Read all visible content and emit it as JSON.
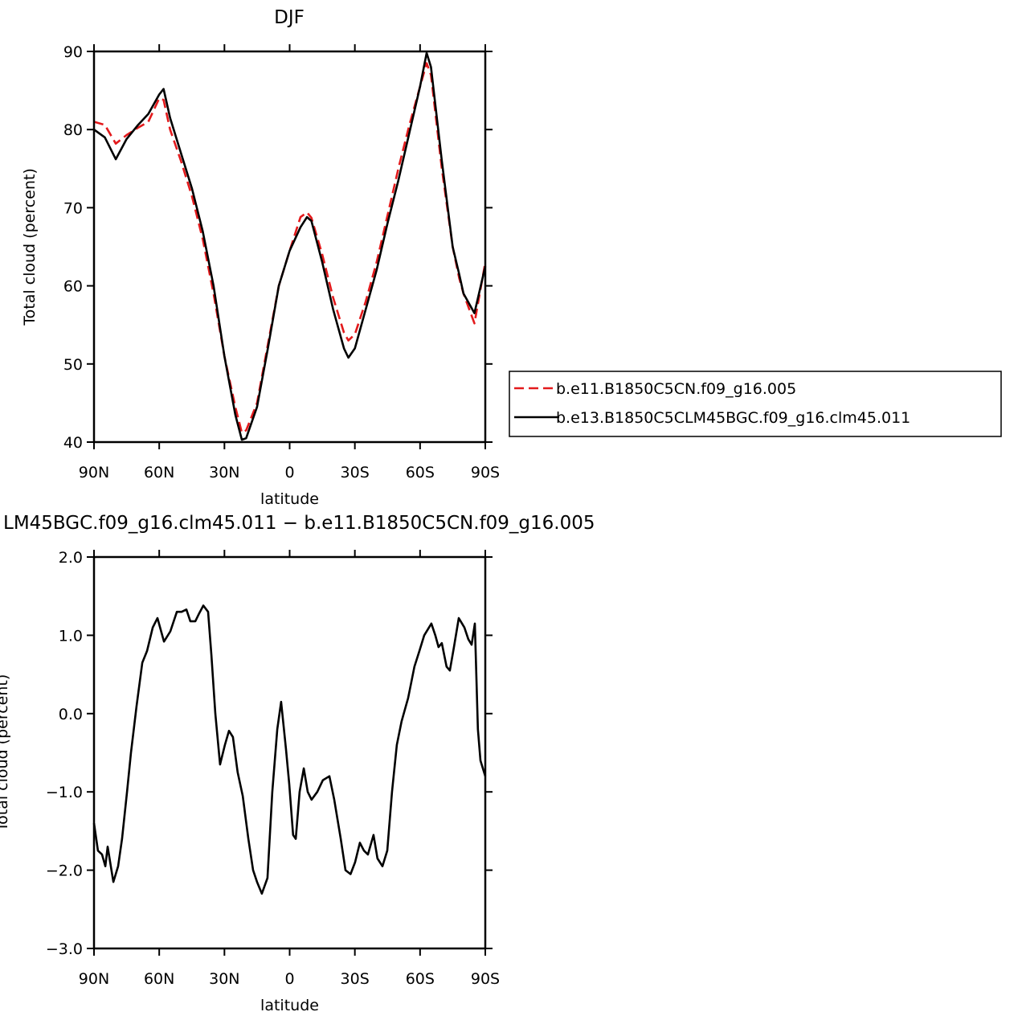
{
  "chart_data": [
    {
      "type": "line",
      "title": "DJF",
      "xlabel": "latitude",
      "ylabel": "Total cloud (percent)",
      "xlim": [
        90,
        -90
      ],
      "ylim": [
        40,
        90
      ],
      "xticks": [
        {
          "value": 90,
          "label": "90N"
        },
        {
          "value": 60,
          "label": "60N"
        },
        {
          "value": 30,
          "label": "30N"
        },
        0,
        {
          "value": -30,
          "label": "30S"
        },
        {
          "value": -60,
          "label": "60S"
        },
        {
          "value": -90,
          "label": "90S"
        }
      ],
      "yticks": [
        40,
        50,
        60,
        70,
        80,
        90
      ],
      "legend": "right",
      "x": [
        90,
        85,
        80,
        75,
        70,
        65,
        60,
        58,
        55,
        50,
        45,
        40,
        35,
        30,
        25,
        22,
        20,
        15,
        10,
        5,
        0,
        -5,
        -8,
        -10,
        -15,
        -20,
        -25,
        -27,
        -30,
        -35,
        -40,
        -45,
        -50,
        -55,
        -60,
        -63,
        -65,
        -70,
        -75,
        -78,
        -80,
        -85,
        -90
      ],
      "series": [
        {
          "name": "b.e11.B1850C5CN.f09_g16.005",
          "color": "#e31a1c",
          "line_style": "dashed",
          "values": [
            81,
            80.6,
            78.2,
            79.3,
            80.2,
            81,
            84,
            83.8,
            80,
            76,
            71.5,
            66,
            59,
            51,
            44.5,
            41.2,
            41.5,
            45,
            52.5,
            60,
            64.5,
            68.8,
            69.4,
            68.7,
            64,
            58.5,
            54,
            53,
            53.8,
            58,
            63,
            69,
            75,
            80.5,
            85.5,
            88.5,
            87,
            75,
            65,
            61,
            59,
            55.2,
            63
          ]
        },
        {
          "name": "b.e13.B1850C5CLM45BGC.f09_g16.clm45.011",
          "color": "#000000",
          "line_style": "solid",
          "values": [
            80,
            79,
            76.2,
            78.8,
            80.5,
            82,
            84.5,
            85.2,
            81.5,
            77,
            72.5,
            67,
            60,
            51,
            43.5,
            40.3,
            40.5,
            44.5,
            52,
            60,
            64.5,
            67.5,
            68.8,
            68.3,
            63,
            57,
            52,
            50.8,
            52,
            57,
            62,
            68,
            73.5,
            79.5,
            85.5,
            89.8,
            88,
            76,
            65,
            61.5,
            59,
            56.5,
            62.5
          ]
        }
      ]
    },
    {
      "type": "line",
      "title": "LM45BGC.f09_g16.clm45.011 − b.e11.B1850C5CN.f09_g16.005",
      "xlabel": "latitude",
      "ylabel": "Total cloud (percent)",
      "xlim": [
        90,
        -90
      ],
      "ylim": [
        -3,
        2
      ],
      "xticks": [
        {
          "value": 90,
          "label": "90N"
        },
        {
          "value": 60,
          "label": "60N"
        },
        {
          "value": 30,
          "label": "30N"
        },
        0,
        {
          "value": -30,
          "label": "30S"
        },
        {
          "value": -60,
          "label": "60S"
        },
        {
          "value": -90,
          "label": "90S"
        }
      ],
      "yticks": [
        {
          "value": -3,
          "label": "−3.0"
        },
        {
          "value": -2,
          "label": "−2.0"
        },
        {
          "value": -1,
          "label": "−1.0"
        },
        {
          "value": 0,
          "label": "0.0"
        },
        {
          "value": 1,
          "label": "1.0"
        },
        {
          "value": 2,
          "label": "2.0"
        }
      ],
      "x": [
        90,
        88.2,
        86.3,
        84.8,
        83.7,
        81.1,
        78.9,
        77.1,
        74.8,
        73,
        70.4,
        67.8,
        65.6,
        63,
        60.8,
        57.8,
        54.9,
        51.9,
        49.7,
        47.5,
        45.7,
        43.4,
        41.6,
        39.7,
        37.5,
        36,
        34.2,
        32,
        29.8,
        27.9,
        26.1,
        23.9,
        21.6,
        19,
        16.8,
        15,
        12.8,
        10.2,
        8,
        5.7,
        3.9,
        1.7,
        0.2,
        -1.6,
        -2.8,
        -4.6,
        -6.5,
        -8.3,
        -10.1,
        -12.7,
        -15.3,
        -18.3,
        -20.5,
        -23.5,
        -25.7,
        -28,
        -30.1,
        -32.3,
        -34.2,
        -36,
        -38.6,
        -40.4,
        -42.7,
        -44.9,
        -47.1,
        -49.3,
        -51.5,
        -54.5,
        -57.4,
        -59.7,
        -61.9,
        -65.2,
        -67,
        -68.5,
        -70,
        -72.2,
        -73.7,
        -75.6,
        -77.8,
        -80.4,
        -82.2,
        -83.7,
        -85.2,
        -86.6,
        -87.8,
        -90
      ],
      "series": [
        {
          "color": "#000000",
          "line_style": "solid",
          "values": [
            -1.4,
            -1.75,
            -1.8,
            -1.95,
            -1.7,
            -2.15,
            -1.95,
            -1.6,
            -1.0,
            -0.5,
            0.1,
            0.65,
            0.8,
            1.1,
            1.22,
            0.92,
            1.05,
            1.3,
            1.3,
            1.33,
            1.18,
            1.18,
            1.28,
            1.38,
            1.3,
            0.75,
            0.0,
            -0.65,
            -0.4,
            -0.22,
            -0.3,
            -0.75,
            -1.05,
            -1.6,
            -2.0,
            -2.15,
            -2.3,
            -2.1,
            -1.0,
            -0.2,
            0.15,
            -0.45,
            -0.9,
            -1.55,
            -1.6,
            -1.0,
            -0.7,
            -1.0,
            -1.1,
            -1.0,
            -0.85,
            -0.8,
            -1.1,
            -1.6,
            -2.0,
            -2.05,
            -1.9,
            -1.65,
            -1.75,
            -1.8,
            -1.55,
            -1.85,
            -1.95,
            -1.75,
            -1.0,
            -0.4,
            -0.1,
            0.2,
            0.6,
            0.8,
            1.0,
            1.15,
            1.0,
            0.85,
            0.9,
            0.6,
            0.55,
            0.85,
            1.22,
            1.1,
            0.95,
            0.88,
            1.15,
            -0.2,
            -0.6,
            -0.8
          ]
        }
      ]
    }
  ]
}
